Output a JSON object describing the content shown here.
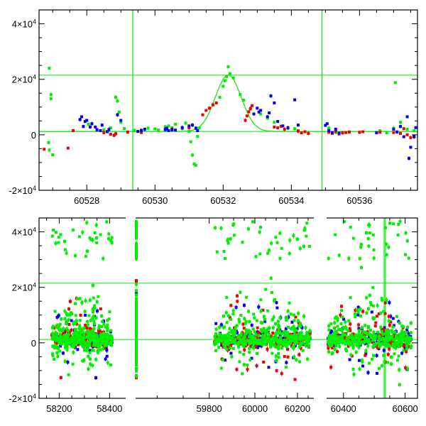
{
  "chart_data": [
    {
      "type": "scatter",
      "panel": "top",
      "xlim": [
        60526.6,
        60537.7
      ],
      "ylim": [
        -20000,
        45000
      ],
      "x_ticks": [
        60528,
        60530,
        60532,
        60534,
        60536
      ],
      "y_ticks": [
        {
          "value": -20000,
          "mantissa": "-2×10",
          "exp": "4"
        },
        {
          "value": 0,
          "mantissa": "0",
          "exp": ""
        },
        {
          "value": 20000,
          "mantissa": "2×10",
          "exp": "4"
        },
        {
          "value": 40000,
          "mantissa": "4×10",
          "exp": "4"
        }
      ],
      "hlines": [
        1200,
        21500
      ],
      "vlines": [
        60529.35,
        60534.9
      ],
      "model_curve": {
        "baseline": 1200,
        "peak": 21500,
        "t0": 60532.15,
        "sigma": 0.38
      },
      "colors": {
        "green": "#00ee00",
        "red": "#ee0000",
        "blue": "#0000ee"
      },
      "series": [
        {
          "color": "green",
          "points": [
            [
              60526.9,
              24000
            ],
            [
              60526.95,
              14500
            ],
            [
              60526.95,
              13000
            ],
            [
              60526.9,
              -5500
            ],
            [
              60527.0,
              -7200
            ],
            [
              60526.88,
              -2800
            ],
            [
              60528.05,
              3800
            ],
            [
              60528.5,
              1800
            ],
            [
              60528.7,
              2500
            ],
            [
              60528.85,
              13500
            ],
            [
              60528.9,
              12200
            ],
            [
              60528.95,
              8200
            ],
            [
              60529.0,
              4500
            ],
            [
              60529.1,
              2200
            ],
            [
              60529.2,
              900
            ],
            [
              60529.4,
              1600
            ],
            [
              60529.8,
              2400
            ],
            [
              60530.0,
              2100
            ],
            [
              60530.1,
              1700
            ],
            [
              60530.3,
              2900
            ],
            [
              60530.4,
              3200
            ],
            [
              60530.5,
              2500
            ],
            [
              60530.6,
              3800
            ],
            [
              60530.8,
              2200
            ],
            [
              60530.9,
              4200
            ],
            [
              60531.0,
              1200
            ],
            [
              60531.05,
              -2500
            ],
            [
              60531.1,
              -7300
            ],
            [
              60531.15,
              -10500
            ],
            [
              60531.2,
              -11000
            ],
            [
              60531.25,
              -600
            ],
            [
              60531.3,
              2500
            ],
            [
              60531.9,
              13500
            ],
            [
              60532.0,
              17500
            ],
            [
              60532.05,
              19500
            ],
            [
              60532.1,
              21000
            ],
            [
              60532.15,
              24500
            ],
            [
              60532.2,
              22000
            ],
            [
              60532.3,
              20500
            ],
            [
              60532.5,
              14500
            ],
            [
              60532.6,
              12500
            ],
            [
              60532.8,
              9200
            ],
            [
              60533.1,
              7500
            ],
            [
              60533.3,
              6000
            ],
            [
              60533.5,
              4500
            ],
            [
              60533.7,
              3000
            ],
            [
              60533.9,
              2400
            ],
            [
              60534.1,
              2200
            ],
            [
              60534.2,
              1500
            ],
            [
              60535.1,
              2400
            ],
            [
              60535.3,
              800
            ],
            [
              60536.6,
              1500
            ],
            [
              60536.8,
              700
            ],
            [
              60537.0,
              2400
            ],
            [
              60537.05,
              18800
            ],
            [
              60537.2,
              4500
            ],
            [
              60537.4,
              2000
            ],
            [
              60537.6,
              1500
            ]
          ]
        },
        {
          "color": "red",
          "points": [
            [
              60526.75,
              -5200
            ],
            [
              60527.45,
              -4800
            ],
            [
              60527.6,
              1500
            ],
            [
              60528.5,
              800
            ],
            [
              60528.6,
              1200
            ],
            [
              60528.7,
              200
            ],
            [
              60528.8,
              -200
            ],
            [
              60528.85,
              400
            ],
            [
              60529.2,
              1000
            ],
            [
              60529.6,
              800
            ],
            [
              60530.5,
              2100
            ],
            [
              60531.0,
              2500
            ],
            [
              60531.4,
              7200
            ],
            [
              60531.5,
              8800
            ],
            [
              60531.6,
              9600
            ],
            [
              60531.7,
              10800
            ],
            [
              60531.8,
              11500
            ],
            [
              60532.65,
              5200
            ],
            [
              60532.7,
              6800
            ],
            [
              60532.75,
              8300
            ],
            [
              60532.8,
              9500
            ],
            [
              60532.85,
              10500
            ],
            [
              60533.5,
              2800
            ],
            [
              60533.6,
              2500
            ],
            [
              60533.7,
              3100
            ],
            [
              60533.8,
              2000
            ],
            [
              60534.2,
              1300
            ],
            [
              60534.3,
              700
            ],
            [
              60534.4,
              1100
            ],
            [
              60534.5,
              500
            ],
            [
              60535.1,
              900
            ],
            [
              60535.2,
              500
            ],
            [
              60535.3,
              1200
            ],
            [
              60535.4,
              300
            ],
            [
              60535.5,
              700
            ],
            [
              60535.6,
              800
            ],
            [
              60535.7,
              1000
            ],
            [
              60536.0,
              900
            ],
            [
              60536.1,
              1100
            ],
            [
              60536.5,
              700
            ],
            [
              60536.6,
              900
            ],
            [
              60537.0,
              800
            ],
            [
              60537.2,
              500
            ],
            [
              60537.3,
              2200
            ],
            [
              60537.4,
              0
            ],
            [
              60537.5,
              -1000
            ],
            [
              60537.6,
              -800
            ]
          ]
        },
        {
          "color": "blue",
          "points": [
            [
              60527.8,
              5500
            ],
            [
              60527.85,
              6500
            ],
            [
              60527.9,
              3000
            ],
            [
              60527.95,
              4800
            ],
            [
              60528.0,
              5200
            ],
            [
              60528.1,
              2800
            ],
            [
              60528.15,
              4000
            ],
            [
              60528.25,
              2800
            ],
            [
              60528.3,
              1800
            ],
            [
              60528.4,
              1500
            ],
            [
              60528.45,
              3500
            ],
            [
              60528.6,
              1100
            ],
            [
              60528.65,
              1900
            ],
            [
              60528.9,
              7200
            ],
            [
              60529.0,
              5200
            ],
            [
              60529.5,
              1200
            ],
            [
              60529.6,
              1600
            ],
            [
              60529.7,
              2000
            ],
            [
              60530.3,
              1900
            ],
            [
              60530.35,
              2300
            ],
            [
              60530.4,
              1500
            ],
            [
              60530.5,
              1800
            ],
            [
              60530.6,
              1700
            ],
            [
              60530.8,
              2600
            ],
            [
              60531.0,
              3200
            ],
            [
              60531.1,
              3500
            ],
            [
              60531.2,
              2400
            ],
            [
              60531.25,
              1500
            ],
            [
              60532.9,
              7500
            ],
            [
              60533.0,
              9600
            ],
            [
              60533.05,
              8200
            ],
            [
              60533.1,
              8800
            ],
            [
              60533.3,
              6500
            ],
            [
              60533.35,
              7900
            ],
            [
              60533.4,
              14000
            ],
            [
              60533.5,
              11500
            ],
            [
              60533.6,
              4800
            ],
            [
              60533.75,
              3200
            ],
            [
              60533.9,
              2500
            ],
            [
              60534.1,
              12600
            ],
            [
              60534.2,
              3500
            ],
            [
              60535.0,
              3400
            ],
            [
              60535.05,
              4000
            ],
            [
              60535.1,
              1500
            ],
            [
              60535.2,
              800
            ],
            [
              60535.3,
              2000
            ],
            [
              60535.4,
              600
            ],
            [
              60536.5,
              800
            ],
            [
              60537.0,
              2000
            ],
            [
              60537.1,
              1000
            ],
            [
              60537.2,
              3000
            ],
            [
              60537.3,
              -700
            ],
            [
              60537.4,
              6500
            ],
            [
              60537.45,
              -8500
            ],
            [
              60537.5,
              -4500
            ],
            [
              60537.6,
              -600
            ],
            [
              60537.65,
              2600
            ]
          ]
        }
      ]
    },
    {
      "type": "scatter",
      "panel": "bottom",
      "xlim": [
        58120,
        60640
      ],
      "x_breaks": [
        [
          58430,
          58530
        ],
        [
          59660,
          59810
        ],
        [
          60260,
          60300
        ],
        [
          60320,
          60350
        ]
      ],
      "ylim": [
        -20000,
        45000
      ],
      "x_ticks": [
        58200,
        58400,
        59800,
        60000,
        60200,
        60400,
        60600
      ],
      "y_ticks": [
        {
          "value": -20000,
          "mantissa": "-2×10",
          "exp": "4"
        },
        {
          "value": 0,
          "mantissa": "0",
          "exp": ""
        },
        {
          "value": 20000,
          "mantissa": "2×10",
          "exp": "4"
        },
        {
          "value": 40000,
          "mantissa": "4×10",
          "exp": "4"
        }
      ],
      "hlines": [
        1200,
        21500
      ],
      "vlines": [
        60532,
        60536
      ],
      "clusters": [
        {
          "x_range": [
            58170,
            58410
          ],
          "points_per_color": {
            "green": 420,
            "red": 110,
            "blue": 90
          }
        },
        {
          "x_range": [
            58530,
            59660
          ],
          "points_per_color": {
            "green": 420,
            "red": 140,
            "blue": 140
          }
        },
        {
          "x_range": [
            59810,
            60260
          ],
          "points_per_color": {
            "green": 430,
            "red": 140,
            "blue": 110
          }
        },
        {
          "x_range": [
            60350,
            60620
          ],
          "points_per_color": {
            "green": 400,
            "red": 130,
            "blue": 130
          }
        }
      ]
    }
  ]
}
